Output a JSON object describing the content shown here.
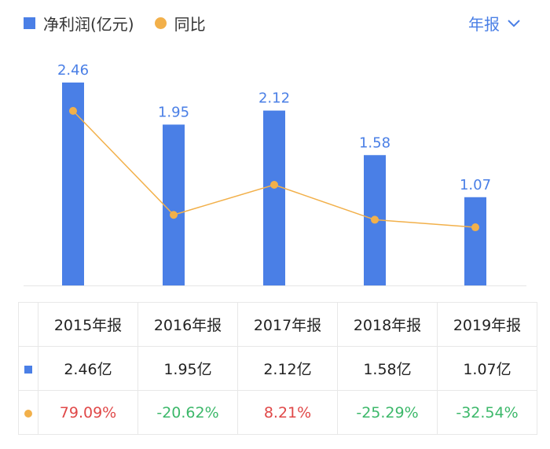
{
  "legend": {
    "bar_label": "净利润(亿元)",
    "line_label": "同比",
    "icons": [
      "square-icon",
      "circle-icon"
    ]
  },
  "period_selector": {
    "label": "年报",
    "icon": "chevron-down-icon"
  },
  "colors": {
    "bar": "#4a7fe6",
    "line": "#f2b04a",
    "positive": "#e04848",
    "negative": "#3cb86a"
  },
  "chart_data": {
    "type": "bar+line",
    "categories": [
      "2015年报",
      "2016年报",
      "2017年报",
      "2018年报",
      "2019年报"
    ],
    "series": [
      {
        "name": "净利润(亿元)",
        "type": "bar",
        "values": [
          2.46,
          1.95,
          2.12,
          1.58,
          1.07
        ],
        "data_labels": [
          "2.46",
          "1.95",
          "2.12",
          "1.58",
          "1.07"
        ]
      },
      {
        "name": "同比",
        "type": "line",
        "values": [
          79.09,
          -20.62,
          8.21,
          -25.29,
          -32.54
        ],
        "unit": "%"
      }
    ],
    "grid": false,
    "legend": "top-left"
  },
  "table": {
    "headers": [
      "2015年报",
      "2016年报",
      "2017年报",
      "2018年报",
      "2019年报"
    ],
    "profit_row": [
      "2.46亿",
      "1.95亿",
      "2.12亿",
      "1.58亿",
      "1.07亿"
    ],
    "yoy_row": [
      "79.09%",
      "-20.62%",
      "8.21%",
      "-25.29%",
      "-32.54%"
    ]
  }
}
